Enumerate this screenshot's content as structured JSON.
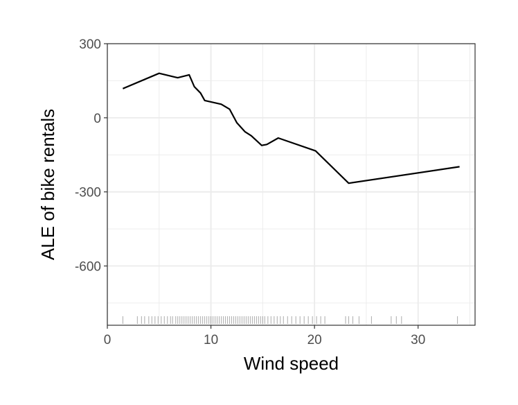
{
  "chart_data": {
    "type": "line",
    "title": "",
    "xlabel": "Wind speed",
    "ylabel": "ALE of bike rentals",
    "xlim": [
      0,
      35.5
    ],
    "ylim": [
      -840,
      300
    ],
    "x_ticks": [
      0,
      10,
      20,
      30
    ],
    "y_ticks": [
      300,
      0,
      -300,
      -600
    ],
    "x_tick_labels": [
      "0",
      "10",
      "20",
      "30"
    ],
    "y_tick_labels": [
      "300",
      "0",
      "-300",
      "-600"
    ],
    "x_minor_ticks": [
      5,
      15,
      25,
      35
    ],
    "y_minor_ticks": [
      150,
      -150,
      -450,
      -750
    ],
    "grid": true,
    "theme": "bw",
    "line_color": "#000000",
    "grid_color": "#ebebeb",
    "rug_color": "#000000",
    "series": [
      {
        "x": [
          1.5,
          5.0,
          6.8,
          7.9,
          8.4,
          9.0,
          9.4,
          11.0,
          11.8,
          12.5,
          13.3,
          13.9,
          14.9,
          15.4,
          16.5,
          20.1,
          23.3,
          34.0
        ],
        "y": [
          118,
          180,
          162,
          174,
          126,
          100,
          70,
          55,
          35,
          -20,
          -57,
          -73,
          -112,
          -108,
          -82,
          -134,
          -265,
          -198
        ]
      }
    ],
    "rug_x": [
      1.5,
      2.9,
      3.3,
      3.6,
      4.0,
      4.3,
      4.6,
      4.9,
      5.2,
      5.5,
      5.8,
      6.1,
      6.3,
      6.6,
      6.8,
      7.0,
      7.2,
      7.4,
      7.6,
      7.8,
      8.0,
      8.2,
      8.4,
      8.6,
      8.8,
      9.0,
      9.2,
      9.4,
      9.6,
      9.8,
      10.0,
      10.2,
      10.4,
      10.6,
      10.8,
      11.0,
      11.2,
      11.4,
      11.6,
      11.8,
      12.0,
      12.2,
      12.4,
      12.6,
      12.8,
      13.0,
      13.2,
      13.4,
      13.6,
      13.8,
      14.0,
      14.2,
      14.4,
      14.6,
      14.8,
      15.0,
      15.2,
      15.5,
      15.8,
      16.1,
      16.4,
      16.7,
      17.0,
      17.4,
      17.8,
      18.2,
      18.6,
      19.0,
      19.4,
      19.8,
      20.2,
      20.6,
      21.0,
      23.0,
      23.3,
      23.7,
      24.3,
      25.5,
      27.4,
      27.9,
      28.4,
      33.8
    ]
  }
}
